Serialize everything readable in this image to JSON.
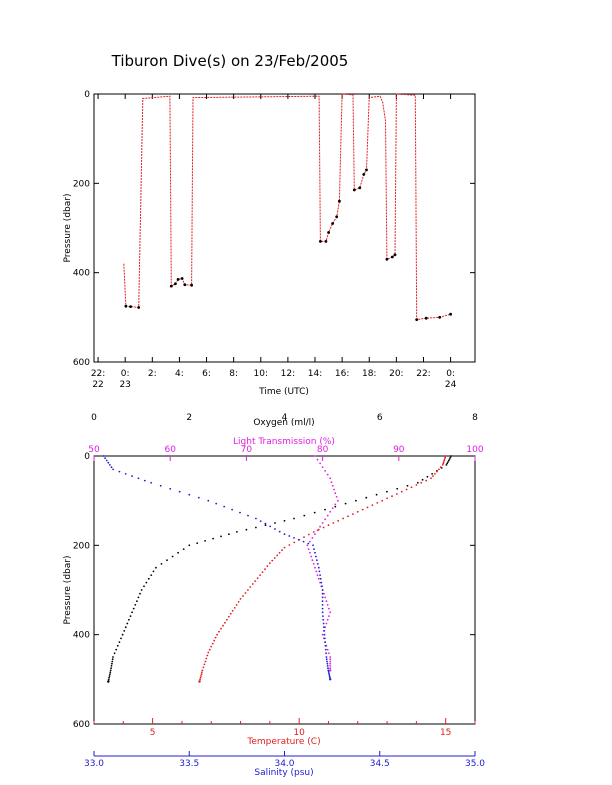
{
  "title": "Tiburon Dive(s) on 23/Feb/2005",
  "colors": {
    "axis": "#000000",
    "depth_trace": "#e02020",
    "depth_marks": "#000000",
    "oxygen": "#000000",
    "light_transmission": "#e020e0",
    "temperature": "#e02020",
    "salinity": "#2020d0"
  },
  "chart_data": [
    {
      "type": "line",
      "name": "dive-profile",
      "xlabel": "Time (UTC)",
      "ylabel": "Pressure (dbar)",
      "xlim": [
        -2.3,
        25.8
      ],
      "ylim": [
        600,
        0
      ],
      "x_ticks": [
        {
          "x": -2,
          "line1": "22:",
          "line2": "22"
        },
        {
          "x": 0,
          "line1": "0:",
          "line2": "23"
        },
        {
          "x": 2,
          "line1": "2:",
          "line2": ""
        },
        {
          "x": 4,
          "line1": "4:",
          "line2": ""
        },
        {
          "x": 6,
          "line1": "6:",
          "line2": ""
        },
        {
          "x": 8,
          "line1": "8:",
          "line2": ""
        },
        {
          "x": 10,
          "line1": "10:",
          "line2": ""
        },
        {
          "x": 12,
          "line1": "12:",
          "line2": ""
        },
        {
          "x": 14,
          "line1": "14:",
          "line2": ""
        },
        {
          "x": 16,
          "line1": "16:",
          "line2": ""
        },
        {
          "x": 18,
          "line1": "18:",
          "line2": ""
        },
        {
          "x": 20,
          "line1": "20:",
          "line2": ""
        },
        {
          "x": 22,
          "line1": "22:",
          "line2": ""
        },
        {
          "x": 24,
          "line1": "0:",
          "line2": "24"
        }
      ],
      "y_ticks": [
        0,
        200,
        400,
        600
      ],
      "series": [
        {
          "role": "trace",
          "points": [
            [
              -0.1,
              380
            ],
            [
              0.05,
              475
            ],
            [
              0.4,
              476
            ],
            [
              1.0,
              478
            ],
            [
              1.3,
              10
            ],
            [
              3.3,
              5
            ],
            [
              3.4,
              430
            ],
            [
              3.7,
              425
            ],
            [
              3.9,
              415
            ],
            [
              4.2,
              413
            ],
            [
              4.4,
              427
            ],
            [
              4.9,
              428
            ],
            [
              5.0,
              8
            ],
            [
              14.3,
              5
            ],
            [
              14.4,
              330
            ],
            [
              14.8,
              330
            ],
            [
              15.0,
              310
            ],
            [
              15.3,
              290
            ],
            [
              15.6,
              275
            ],
            [
              15.8,
              240
            ],
            [
              16.0,
              0
            ],
            [
              16.8,
              2
            ],
            [
              16.9,
              215
            ],
            [
              17.3,
              210
            ],
            [
              17.6,
              180
            ],
            [
              17.8,
              170
            ],
            [
              18.0,
              8
            ],
            [
              18.8,
              5
            ],
            [
              19.0,
              20
            ],
            [
              19.2,
              60
            ],
            [
              19.3,
              370
            ],
            [
              19.7,
              365
            ],
            [
              19.9,
              360
            ],
            [
              20.0,
              0
            ],
            [
              21.4,
              3
            ],
            [
              21.5,
              505
            ],
            [
              22.2,
              502
            ],
            [
              23.2,
              500
            ],
            [
              24.0,
              493
            ]
          ]
        },
        {
          "role": "depth_marks",
          "points": [
            [
              0.05,
              475
            ],
            [
              0.4,
              476
            ],
            [
              1.0,
              478
            ],
            [
              3.4,
              430
            ],
            [
              3.7,
              425
            ],
            [
              3.9,
              415
            ],
            [
              4.2,
              413
            ],
            [
              4.4,
              427
            ],
            [
              4.9,
              428
            ],
            [
              14.4,
              330
            ],
            [
              14.8,
              330
            ],
            [
              15.0,
              310
            ],
            [
              15.3,
              290
            ],
            [
              15.6,
              275
            ],
            [
              15.8,
              240
            ],
            [
              16.9,
              215
            ],
            [
              17.3,
              210
            ],
            [
              17.6,
              180
            ],
            [
              17.8,
              170
            ],
            [
              19.3,
              370
            ],
            [
              19.7,
              365
            ],
            [
              19.9,
              360
            ],
            [
              21.5,
              505
            ],
            [
              22.2,
              502
            ],
            [
              23.2,
              500
            ],
            [
              24.0,
              493
            ]
          ]
        }
      ]
    },
    {
      "type": "scatter",
      "name": "water-profile",
      "ylabel": "Pressure (dbar)",
      "ylim": [
        600,
        0
      ],
      "y_ticks": [
        0,
        200,
        400,
        600
      ],
      "axes": {
        "oxygen": {
          "label": "Oxygen (ml/l)",
          "range": [
            0,
            8
          ],
          "ticks": [
            0,
            2,
            4,
            6,
            8
          ]
        },
        "light_transmission": {
          "label": "Light Transmission (%)",
          "range": [
            50,
            100
          ],
          "ticks": [
            50,
            60,
            70,
            80,
            90,
            100
          ]
        },
        "temperature": {
          "label": "Temperature (C)",
          "range": [
            3,
            16
          ],
          "ticks": [
            5,
            10,
            15
          ]
        },
        "salinity": {
          "label": "Salinity (psu)",
          "range": [
            33.0,
            35.0
          ],
          "ticks": [
            "33.0",
            "33.5",
            "34.0",
            "34.5",
            "35.0"
          ]
        }
      },
      "series": [
        {
          "key": "oxygen",
          "points": [
            [
              7.5,
              0
            ],
            [
              7.4,
              20
            ],
            [
              6.8,
              60
            ],
            [
              5.5,
              100
            ],
            [
              4.2,
              140
            ],
            [
              3.0,
              170
            ],
            [
              2.0,
              200
            ],
            [
              1.3,
              250
            ],
            [
              1.0,
              300
            ],
            [
              0.8,
              350
            ],
            [
              0.6,
              400
            ],
            [
              0.4,
              450
            ],
            [
              0.35,
              480
            ],
            [
              0.3,
              505
            ]
          ]
        },
        {
          "key": "light_transmission",
          "points": [
            [
              79,
              0
            ],
            [
              81,
              50
            ],
            [
              82,
              100
            ],
            [
              80,
              150
            ],
            [
              78,
              200
            ],
            [
              79,
              250
            ],
            [
              80,
              300
            ],
            [
              81,
              350
            ],
            [
              80,
              400
            ],
            [
              81,
              450
            ],
            [
              81,
              480
            ]
          ]
        },
        {
          "key": "temperature",
          "points": [
            [
              15.0,
              0
            ],
            [
              14.9,
              20
            ],
            [
              14.5,
              50
            ],
            [
              13.5,
              80
            ],
            [
              12.5,
              110
            ],
            [
              11.5,
              140
            ],
            [
              10.5,
              170
            ],
            [
              9.5,
              205
            ],
            [
              9.0,
              240
            ],
            [
              8.5,
              280
            ],
            [
              8.0,
              320
            ],
            [
              7.6,
              360
            ],
            [
              7.2,
              400
            ],
            [
              6.9,
              440
            ],
            [
              6.7,
              480
            ],
            [
              6.6,
              505
            ]
          ]
        },
        {
          "key": "salinity",
          "points": [
            [
              33.05,
              0
            ],
            [
              33.1,
              30
            ],
            [
              33.3,
              60
            ],
            [
              33.6,
              100
            ],
            [
              33.85,
              140
            ],
            [
              34.0,
              175
            ],
            [
              34.15,
              200
            ],
            [
              34.18,
              250
            ],
            [
              34.2,
              300
            ],
            [
              34.2,
              350
            ],
            [
              34.21,
              400
            ],
            [
              34.22,
              450
            ],
            [
              34.23,
              480
            ],
            [
              34.24,
              500
            ]
          ]
        }
      ]
    }
  ]
}
